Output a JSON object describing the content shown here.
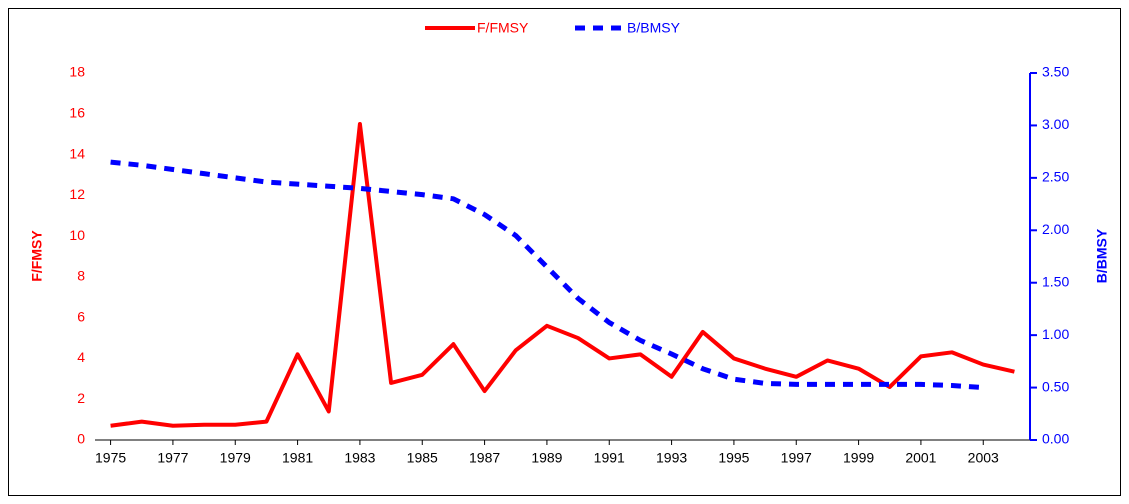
{
  "chart_data": {
    "type": "line",
    "x": [
      1975,
      1976,
      1977,
      1978,
      1979,
      1980,
      1981,
      1982,
      1983,
      1984,
      1985,
      1986,
      1987,
      1988,
      1989,
      1990,
      1991,
      1992,
      1993,
      1994,
      1995,
      1996,
      1997,
      1998,
      1999,
      2000,
      2001,
      2002,
      2003,
      2004
    ],
    "xlim": [
      1974.5,
      2004.5
    ],
    "xticks": [
      1975,
      1977,
      1979,
      1981,
      1983,
      1985,
      1987,
      1989,
      1991,
      1993,
      1995,
      1997,
      1999,
      2001,
      2003
    ],
    "ylabel": "F/FMSY",
    "y2label": "B/BMSY",
    "ylim": [
      0,
      18
    ],
    "yticks": [
      0,
      2,
      4,
      6,
      8,
      10,
      12,
      14,
      16,
      18
    ],
    "y2lim": [
      0,
      3.5
    ],
    "y2ticks": [
      {
        "value": 0,
        "label": "0.00"
      },
      {
        "value": 0.5,
        "label": "0.50"
      },
      {
        "value": 1,
        "label": "1.00"
      },
      {
        "value": 1.5,
        "label": "1.50"
      },
      {
        "value": 2,
        "label": "2.00"
      },
      {
        "value": 2.5,
        "label": "2.50"
      },
      {
        "value": 3,
        "label": "3.00"
      },
      {
        "value": 3.5,
        "label": "3.50"
      }
    ],
    "legend": "top",
    "series": [
      {
        "name": "F/FMSY",
        "color": "#ff0000",
        "dash": false,
        "values": [
          0.7,
          0.9,
          0.7,
          0.75,
          0.75,
          0.9,
          4.2,
          1.4,
          15.5,
          2.8,
          3.2,
          4.7,
          2.4,
          4.4,
          5.6,
          5.0,
          4.0,
          4.2,
          3.1,
          5.3,
          4.0,
          3.5,
          3.1,
          3.9,
          3.5,
          2.6,
          4.1,
          4.3,
          3.7,
          3.35
        ]
      },
      {
        "name": "B/BMSY",
        "color": "#0000ff",
        "dash": true,
        "axis": "y2",
        "values": [
          2.65,
          2.62,
          2.58,
          2.54,
          2.5,
          2.46,
          2.44,
          2.42,
          2.4,
          2.37,
          2.34,
          2.3,
          2.15,
          1.95,
          1.65,
          1.35,
          1.12,
          0.95,
          0.82,
          0.68,
          0.58,
          0.54,
          0.53,
          0.53,
          0.53,
          0.53,
          0.53,
          0.52,
          0.5,
          null
        ]
      }
    ]
  }
}
